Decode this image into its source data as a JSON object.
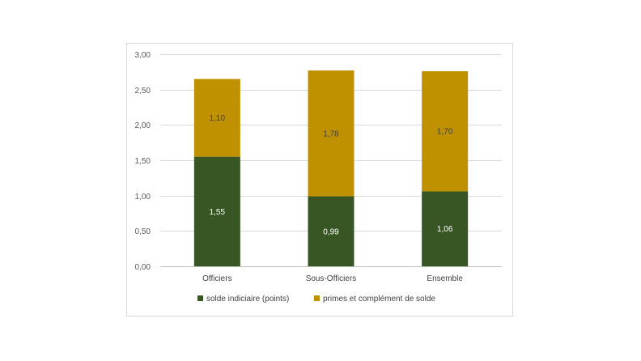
{
  "chart_data": {
    "type": "bar",
    "stacked": true,
    "categories": [
      "Officiers",
      "Sous-Officiers",
      "Ensemble"
    ],
    "series": [
      {
        "name": "solde indiciaire (points)",
        "values": [
          1.55,
          0.99,
          1.06
        ],
        "labels": [
          "1,55",
          "0,99",
          "1,06"
        ],
        "color": "#375623",
        "label_color": "#ffffff"
      },
      {
        "name": "primes et complément de solde",
        "values": [
          1.1,
          1.78,
          1.7
        ],
        "labels": [
          "1,10",
          "1,78",
          "1,70"
        ],
        "color": "#bf9000",
        "label_color": "#404040"
      }
    ],
    "yticks": [
      "0,00",
      "0,50",
      "1,00",
      "1,50",
      "2,00",
      "2,50",
      "3,00"
    ],
    "ylim": [
      0,
      3
    ],
    "grid": true,
    "legend": "bottom",
    "title": "",
    "xlabel": "",
    "ylabel": ""
  }
}
